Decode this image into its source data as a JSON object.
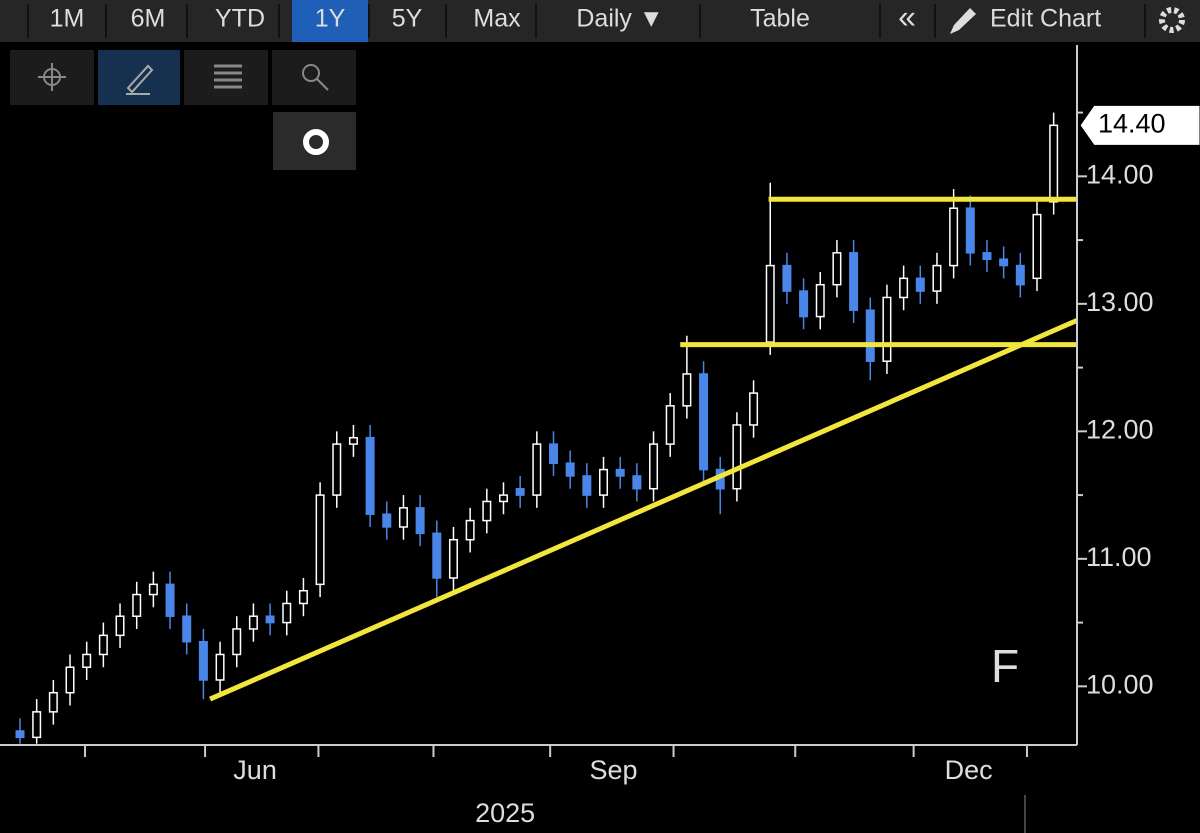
{
  "toolbar": {
    "ranges": [
      "1M",
      "6M",
      "YTD",
      "1Y",
      "5Y",
      "Max"
    ],
    "active_range": 3,
    "interval": "Daily ▼",
    "table": "Table",
    "collapse": "«",
    "edit": "Edit Chart"
  },
  "chart_data": {
    "type": "candlestick",
    "symbol": "F",
    "open": [
      9.65,
      9.6,
      9.8,
      9.95,
      10.15,
      10.25,
      10.4,
      10.55,
      10.72,
      10.8,
      10.55,
      10.35,
      10.05,
      10.25,
      10.45,
      10.55,
      10.5,
      10.65,
      10.8,
      11.5,
      11.9,
      11.95,
      11.35,
      11.25,
      11.4,
      11.2,
      10.85,
      11.15,
      11.3,
      11.45,
      11.55,
      11.5,
      11.9,
      11.75,
      11.65,
      11.5,
      11.7,
      11.65,
      11.55,
      11.9,
      12.2,
      12.45,
      11.7,
      11.55,
      12.05,
      12.7,
      13.3,
      13.1,
      12.9,
      13.15,
      13.4,
      12.95,
      12.55,
      13.05,
      13.2,
      13.1,
      13.3,
      13.75,
      13.4,
      13.35,
      13.3,
      13.2,
      13.8
    ],
    "high": [
      9.75,
      9.9,
      10.05,
      10.25,
      10.35,
      10.5,
      10.65,
      10.82,
      10.9,
      10.9,
      10.65,
      10.45,
      10.35,
      10.55,
      10.65,
      10.65,
      10.75,
      10.85,
      11.6,
      12.0,
      12.05,
      12.05,
      11.45,
      11.5,
      11.5,
      11.3,
      11.25,
      11.4,
      11.55,
      11.6,
      11.65,
      12.0,
      12.0,
      11.85,
      11.75,
      11.8,
      11.8,
      11.75,
      12.0,
      12.3,
      12.75,
      12.55,
      11.8,
      12.15,
      12.4,
      13.95,
      13.4,
      13.2,
      13.25,
      13.5,
      13.5,
      13.05,
      13.15,
      13.3,
      13.3,
      13.4,
      13.9,
      13.85,
      13.5,
      13.45,
      13.4,
      13.8,
      14.5
    ],
    "low": [
      9.55,
      9.55,
      9.7,
      9.85,
      10.05,
      10.15,
      10.3,
      10.45,
      10.62,
      10.45,
      10.25,
      9.9,
      9.95,
      10.15,
      10.35,
      10.4,
      10.4,
      10.55,
      10.7,
      11.4,
      11.8,
      11.25,
      11.15,
      11.15,
      11.1,
      10.7,
      10.75,
      11.05,
      11.2,
      11.35,
      11.4,
      11.4,
      11.65,
      11.55,
      11.4,
      11.4,
      11.55,
      11.45,
      11.45,
      11.8,
      12.1,
      11.6,
      11.35,
      11.45,
      11.95,
      12.6,
      13.0,
      12.8,
      12.8,
      13.05,
      12.85,
      12.4,
      12.45,
      12.95,
      13.0,
      13.0,
      13.2,
      13.3,
      13.25,
      13.2,
      13.05,
      13.1,
      13.7
    ],
    "close": [
      9.6,
      9.8,
      9.95,
      10.15,
      10.25,
      10.4,
      10.55,
      10.72,
      10.8,
      10.55,
      10.35,
      10.05,
      10.25,
      10.45,
      10.55,
      10.5,
      10.65,
      10.75,
      11.5,
      11.9,
      11.95,
      11.35,
      11.25,
      11.4,
      11.2,
      10.85,
      11.15,
      11.3,
      11.45,
      11.5,
      11.5,
      11.9,
      11.75,
      11.65,
      11.5,
      11.7,
      11.65,
      11.55,
      11.9,
      12.2,
      12.45,
      11.7,
      11.55,
      12.05,
      12.3,
      13.3,
      13.1,
      12.9,
      13.15,
      13.4,
      12.95,
      12.55,
      13.05,
      13.2,
      13.1,
      13.3,
      13.75,
      13.4,
      13.35,
      13.3,
      13.15,
      13.7,
      14.4
    ],
    "up_color": "#ffffff",
    "down_color": "#4a86e8",
    "lines": [
      {
        "x": [
          44.9,
          63.4
        ],
        "y": [
          13.82,
          13.82
        ]
      },
      {
        "x": [
          39.6,
          63.4
        ],
        "y": [
          12.68,
          12.68
        ]
      },
      {
        "x": [
          11.4,
          63.4
        ],
        "y": [
          9.9,
          12.87
        ]
      }
    ],
    "line_color": "#f2e53c",
    "last_price": {
      "value": 14.4,
      "label": "14.40"
    },
    "xlim": [
      -1.2,
      63.4
    ],
    "ylim": [
      9.54,
      15.03
    ],
    "yticks": [
      {
        "value": 10,
        "label": "10.00"
      },
      {
        "value": 11,
        "label": "11.00"
      },
      {
        "value": 12,
        "label": "12.00"
      },
      {
        "value": 13,
        "label": "13.00"
      },
      {
        "value": 14,
        "label": "14.00"
      }
    ],
    "y_minor_ticks": [
      10.5,
      11.5,
      12.5,
      13.5,
      14.5
    ],
    "x_minor_ticks": [
      3.9,
      11.1,
      17.9,
      24.8,
      31.8,
      39.2,
      46.5,
      53.6,
      60.4
    ],
    "xlabels": [
      {
        "value": 14.1,
        "label": "Jun"
      },
      {
        "value": 35.6,
        "label": "Sep"
      },
      {
        "value": 56.9,
        "label": "Dec"
      }
    ],
    "year_label": {
      "value": 29.1,
      "label": "2025"
    }
  }
}
